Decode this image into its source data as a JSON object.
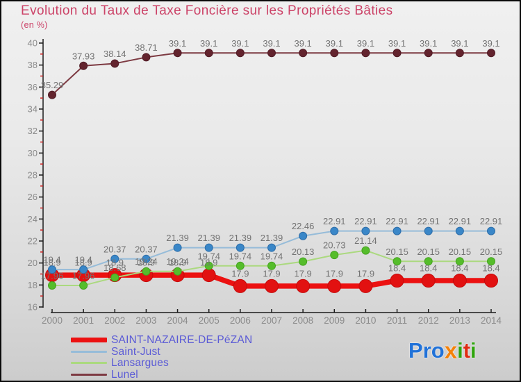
{
  "chart_data": {
    "type": "line",
    "title": "Evolution du Taux de Taxe Foncière sur les Propriétés Bâties",
    "subtitle": "(en %)",
    "title_color": "#cc4368",
    "x": [
      2000,
      2001,
      2002,
      2003,
      2004,
      2005,
      2006,
      2007,
      2008,
      2009,
      2010,
      2011,
      2012,
      2013,
      2014
    ],
    "xlabel": "",
    "ylabel": "",
    "ylim": [
      16,
      40
    ],
    "y_tick_step": 2,
    "y_ticks": [
      16,
      18,
      20,
      22,
      24,
      26,
      28,
      30,
      32,
      34,
      36,
      38,
      40
    ],
    "grid": false,
    "legend_position": "bottom-left",
    "axis": {
      "line_color": "#1c1c1c",
      "tick_label_color": "#8a8a8a",
      "minor_tick_color": "#cc2222",
      "point_label_color": "#737373"
    },
    "series": [
      {
        "name": "SAINT-NAZAIRE-DE-PéZAN",
        "values": [
          18.9,
          18.9,
          18.9,
          18.9,
          18.9,
          18.9,
          17.9,
          17.9,
          17.9,
          17.9,
          17.9,
          18.4,
          18.4,
          18.4,
          18.4
        ],
        "labels": [
          "18.9",
          "18.9",
          "18.9",
          "18.9",
          "18.9",
          "18.9",
          "17.9",
          "17.9",
          "17.9",
          "17.9",
          "17.9",
          "18.4",
          "18.4",
          "18.4",
          "18.4"
        ],
        "line_color": "#ec1111",
        "dot_color": "#e21111",
        "dot_edge": "#c40b0b",
        "line_width": 7.5,
        "dot_radius": 9.5,
        "swatch_height": 7
      },
      {
        "name": "Saint-Just",
        "values": [
          19.4,
          19.4,
          20.37,
          20.37,
          21.39,
          21.39,
          21.39,
          21.39,
          22.46,
          22.91,
          22.91,
          22.91,
          22.91,
          22.91,
          22.91
        ],
        "labels": [
          "19.4",
          "19.4",
          "20.37",
          "20.37",
          "21.39",
          "21.39",
          "21.39",
          "21.39",
          "22.46",
          "22.91",
          "22.91",
          "22.91",
          "22.91",
          "22.91",
          "22.91"
        ],
        "line_color": "#96bcd9",
        "dot_color": "#3a87c8",
        "dot_edge": "#2d6da8",
        "line_width": 2,
        "dot_radius": 5.5,
        "swatch_height": 3
      },
      {
        "name": "Lansargues",
        "values": [
          17.96,
          17.96,
          18.68,
          19.24,
          19.24,
          19.74,
          19.74,
          19.74,
          20.13,
          20.73,
          21.14,
          20.15,
          20.15,
          20.15,
          20.15
        ],
        "labels": [
          "17.96",
          "17.96",
          "18.68",
          "19.24",
          "19.24",
          "19.74",
          "19.74",
          "19.74",
          "20.13",
          "20.73",
          "21.14",
          "20.15",
          "20.15",
          "20.15",
          "20.15"
        ],
        "line_color": "#abd97f",
        "dot_color": "#56bd2b",
        "dot_edge": "#43a31f",
        "line_width": 2,
        "dot_radius": 5.5,
        "swatch_height": 3
      },
      {
        "name": "Lunel",
        "values": [
          35.29,
          37.93,
          38.14,
          38.71,
          39.1,
          39.1,
          39.1,
          39.1,
          39.1,
          39.1,
          39.1,
          39.1,
          39.1,
          39.1,
          39.1
        ],
        "labels": [
          "35.29",
          "37.93",
          "38.14",
          "38.71",
          "39.1",
          "39.1",
          "39.1",
          "39.1",
          "39.1",
          "39.1",
          "39.1",
          "39.1",
          "39.1",
          "39.1",
          "39.1"
        ],
        "line_color": "#7d3a42",
        "dot_color": "#63242e",
        "dot_edge": "#511c26",
        "line_width": 2,
        "dot_radius": 5.5,
        "swatch_height": 3
      }
    ]
  },
  "legend": {
    "text_color": "#5b5bd6"
  },
  "branding": {
    "name": "Proxiti",
    "letters": [
      {
        "ch": "P",
        "color": "#2172d8"
      },
      {
        "ch": "r",
        "color": "#2172d8"
      },
      {
        "ch": "o",
        "color": "#2172d8"
      },
      {
        "ch": "x",
        "color": "#f5820a"
      },
      {
        "ch": "i",
        "color": "#2fa40c"
      },
      {
        "ch": "t",
        "color": "#e02b12"
      },
      {
        "ch": "i",
        "color": "#2fa40c"
      }
    ]
  }
}
